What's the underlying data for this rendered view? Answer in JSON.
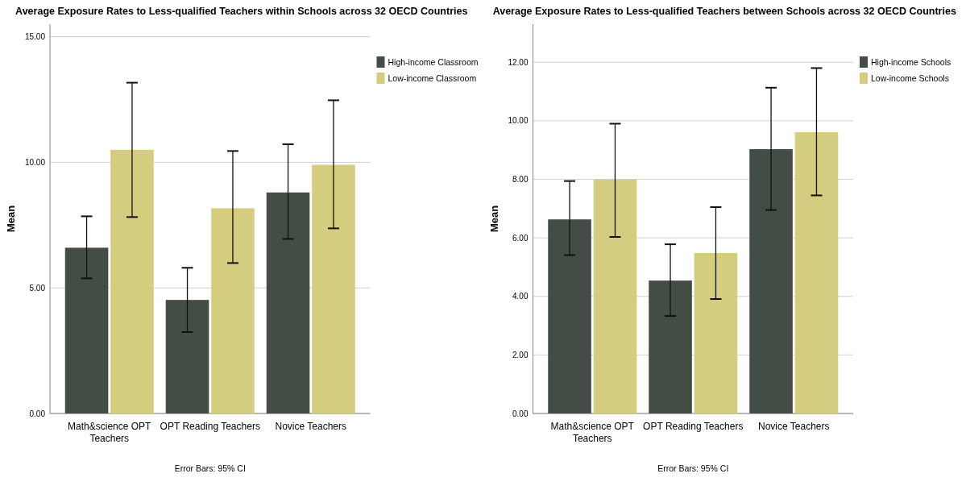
{
  "chart_data": [
    {
      "type": "bar",
      "title": "Average Exposure Rates to Less-qualified Teachers within Schools across 32 OECD Countries",
      "ylabel": "Mean",
      "categories": [
        "Math&science OPT Teachers",
        "OPT Reading Teachers",
        "Novice Teachers"
      ],
      "series": [
        {
          "name": "High-income Classroom",
          "color": "#444d45",
          "values": [
            6.6,
            4.52,
            8.8
          ],
          "errors": [
            [
              5.38,
              7.85
            ],
            [
              3.24,
              5.8
            ],
            [
              6.95,
              10.72
            ]
          ]
        },
        {
          "name": "Low-income Classroom",
          "color": "#d4cc7e",
          "values": [
            10.5,
            8.17,
            9.9
          ],
          "errors": [
            [
              7.82,
              13.17
            ],
            [
              5.99,
              10.45
            ],
            [
              7.37,
              12.47
            ]
          ]
        }
      ],
      "ylim": [
        0,
        15.5
      ],
      "yticks": [
        {
          "value": 0,
          "label": "0.00"
        },
        {
          "value": 5,
          "label": "5.00"
        },
        {
          "value": 10,
          "label": "10.00"
        },
        {
          "value": 15,
          "label": "15.00"
        }
      ],
      "grid": "y",
      "legend": "right",
      "annotations": [
        "Error Bars: 95% CI"
      ]
    },
    {
      "type": "bar",
      "title": "Average Exposure Rates to Less-qualified Teachers between Schools across 32 OECD Countries",
      "ylabel": "Mean",
      "categories": [
        "Math&science OPT Teachers",
        "OPT Reading Teachers",
        "Novice Teachers"
      ],
      "series": [
        {
          "name": "High-income Schools",
          "color": "#444d45",
          "values": [
            6.63,
            4.54,
            9.03
          ],
          "errors": [
            [
              5.41,
              7.94
            ],
            [
              3.33,
              5.78
            ],
            [
              6.95,
              11.13
            ]
          ]
        },
        {
          "name": "Low-income Schools",
          "color": "#d4cc7e",
          "values": [
            7.99,
            5.48,
            9.61
          ],
          "errors": [
            [
              6.03,
              9.9
            ],
            [
              3.91,
              7.05
            ],
            [
              7.45,
              11.8
            ]
          ]
        }
      ],
      "ylim": [
        0,
        13.3
      ],
      "yticks": [
        {
          "value": 0,
          "label": "0.00"
        },
        {
          "value": 2,
          "label": "2.00"
        },
        {
          "value": 4,
          "label": "4.00"
        },
        {
          "value": 6,
          "label": "6.00"
        },
        {
          "value": 8,
          "label": "8.00"
        },
        {
          "value": 10,
          "label": "10.00"
        },
        {
          "value": 12,
          "label": "12.00"
        }
      ],
      "grid": "y",
      "legend": "right",
      "annotations": [
        "Error Bars: 95% CI"
      ]
    }
  ]
}
